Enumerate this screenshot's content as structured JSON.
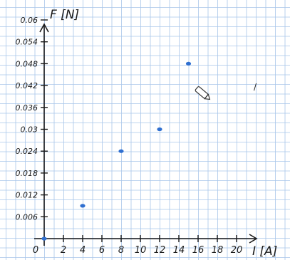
{
  "chart_data": {
    "type": "scatter",
    "title": "",
    "xlabel": "I [A]",
    "ylabel": "F [N]",
    "xlim": [
      0,
      20
    ],
    "ylim": [
      0,
      0.06
    ],
    "x_ticks": [
      {
        "value": 0,
        "label": "0"
      },
      {
        "value": 2,
        "label": "2"
      },
      {
        "value": 4,
        "label": "4"
      },
      {
        "value": 6,
        "label": "6"
      },
      {
        "value": 8,
        "label": "8"
      },
      {
        "value": 10,
        "label": "10"
      },
      {
        "value": 12,
        "label": "12"
      },
      {
        "value": 14,
        "label": "14"
      },
      {
        "value": 16,
        "label": "16"
      },
      {
        "value": 18,
        "label": "18"
      },
      {
        "value": 20,
        "label": "20"
      }
    ],
    "y_ticks": [
      {
        "value": 0.006,
        "label": "0.006"
      },
      {
        "value": 0.012,
        "label": "0.012"
      },
      {
        "value": 0.018,
        "label": "0.018"
      },
      {
        "value": 0.024,
        "label": "0.024"
      },
      {
        "value": 0.03,
        "label": "0.03"
      },
      {
        "value": 0.036,
        "label": "0.036"
      },
      {
        "value": 0.042,
        "label": "0.042"
      },
      {
        "value": 0.048,
        "label": "0.048"
      },
      {
        "value": 0.054,
        "label": "0.054"
      },
      {
        "value": 0.06,
        "label": "0.06"
      }
    ],
    "grid": true,
    "point_color": "#2f6fd0",
    "points": [
      {
        "x": 0,
        "y": 0
      },
      {
        "x": 4,
        "y": 0.009
      },
      {
        "x": 8,
        "y": 0.024
      },
      {
        "x": 12,
        "y": 0.03
      },
      {
        "x": 15,
        "y": 0.048
      }
    ]
  }
}
